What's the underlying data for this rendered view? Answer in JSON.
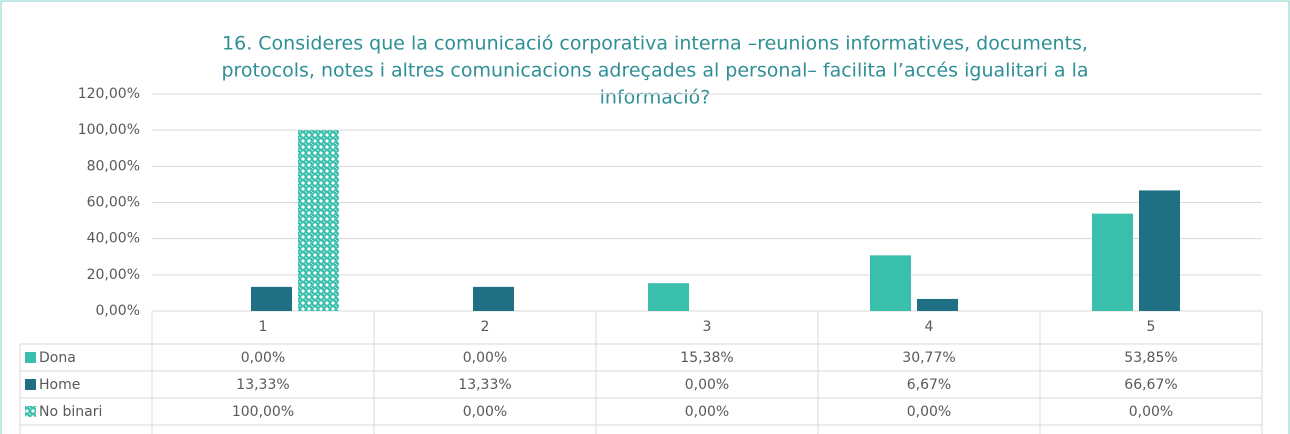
{
  "chart_data": {
    "type": "bar",
    "title": [
      "16. Consideres que la comunicació corporativa interna –reunions informatives, documents,",
      "protocols, notes i altres comunicacions adreçades al personal– facilita l’accés igualitari a la",
      "informació?"
    ],
    "categories": [
      "1",
      "2",
      "3",
      "4",
      "5"
    ],
    "series": [
      {
        "name": "Dona",
        "color": "#3bbfad",
        "values": [
          0,
          0,
          15.38,
          30.77,
          53.85
        ],
        "value_labels": [
          "0,00%",
          "0,00%",
          "15,38%",
          "30,77%",
          "53,85%"
        ]
      },
      {
        "name": "Home",
        "color": "#1f7085",
        "values": [
          13.33,
          13.33,
          0,
          6.67,
          66.67
        ],
        "value_labels": [
          "13,33%",
          "13,33%",
          "0,00%",
          "6,67%",
          "66,67%"
        ]
      },
      {
        "name": "No binari",
        "color": "#3bbfad",
        "pattern": true,
        "values": [
          100,
          0,
          0,
          0,
          0
        ],
        "value_labels": [
          "100,00%",
          "0,00%",
          "0,00%",
          "0,00%",
          "0,00%"
        ]
      }
    ],
    "ylim": [
      0,
      120
    ],
    "yticks": [
      {
        "value": 0,
        "label": "0,00%"
      },
      {
        "value": 20,
        "label": "20,00%"
      },
      {
        "value": 40,
        "label": "40,00%"
      },
      {
        "value": 60,
        "label": "60,00%"
      },
      {
        "value": 80,
        "label": "80,00%"
      },
      {
        "value": 100,
        "label": "100,00%"
      },
      {
        "value": 120,
        "label": "120,00%"
      }
    ],
    "grid": true
  }
}
